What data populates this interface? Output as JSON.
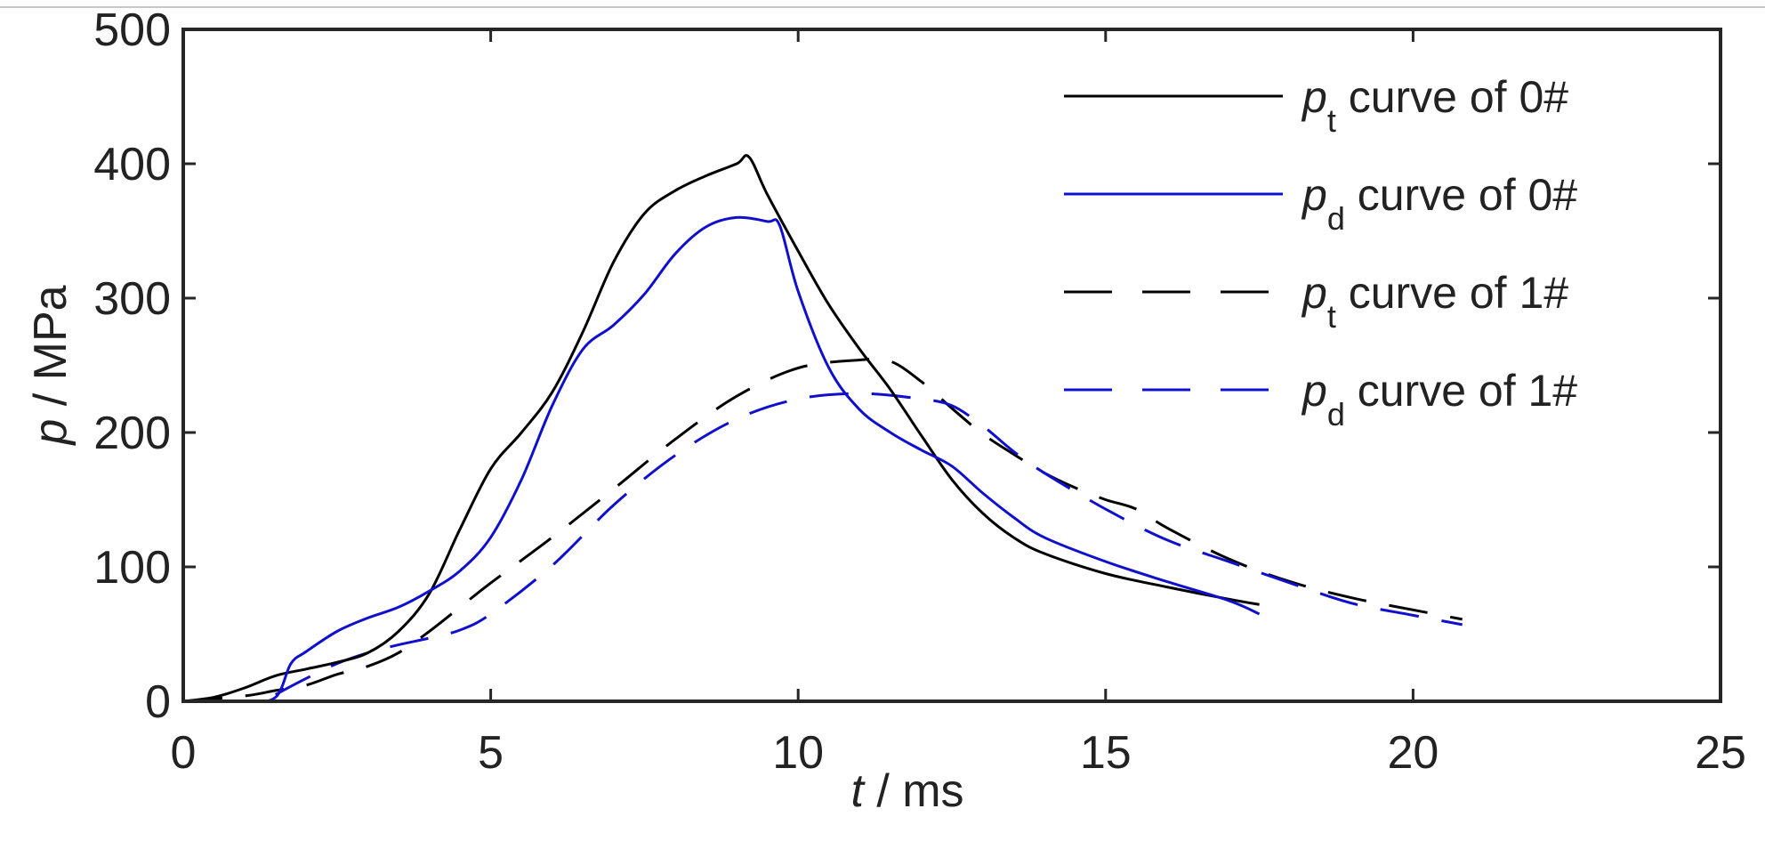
{
  "chart_data": {
    "type": "line",
    "title": "",
    "xlabel": {
      "var": "t",
      "unit": " / ms"
    },
    "ylabel": {
      "var": "p",
      "unit": " / MPa"
    },
    "xlim": [
      0,
      25
    ],
    "ylim": [
      0,
      500
    ],
    "xticks": [
      0,
      5,
      10,
      15,
      20,
      25
    ],
    "yticks": [
      0,
      100,
      200,
      300,
      400,
      500
    ],
    "grid": false,
    "legend_position": "top-right",
    "series": [
      {
        "name": "pt curve of  0#",
        "legend": {
          "var": "p",
          "sub": "t",
          "rest": " curve of  0#"
        },
        "color": "#000000",
        "dash": "solid",
        "x": [
          0,
          0.5,
          1.0,
          1.5,
          2.0,
          2.5,
          3.0,
          3.5,
          4.0,
          4.5,
          5.0,
          5.5,
          6.0,
          6.5,
          7.0,
          7.5,
          8.0,
          8.5,
          9.0,
          9.2,
          9.5,
          10.0,
          10.5,
          11.0,
          11.5,
          12.0,
          12.5,
          13.0,
          13.5,
          14.0,
          15.0,
          16.0,
          17.0,
          17.5
        ],
        "y": [
          0,
          3,
          10,
          19,
          24,
          29,
          36,
          52,
          80,
          128,
          173,
          200,
          230,
          275,
          327,
          363,
          380,
          391,
          400,
          405,
          377,
          335,
          295,
          262,
          232,
          198,
          165,
          140,
          122,
          110,
          95,
          85,
          76,
          72
        ]
      },
      {
        "name": "pd curve of 0#",
        "legend": {
          "var": "p",
          "sub": "d",
          "rest": " curve of 0#"
        },
        "color": "#1010cc",
        "dash": "solid",
        "x": [
          0,
          1.0,
          1.5,
          1.75,
          2.0,
          2.5,
          3.0,
          3.5,
          4.0,
          4.5,
          5.0,
          5.5,
          6.0,
          6.5,
          7.0,
          7.5,
          8.0,
          8.5,
          9.0,
          9.5,
          9.7,
          10.0,
          10.5,
          11.0,
          11.5,
          12.0,
          12.5,
          13.0,
          13.5,
          14.0,
          15.0,
          16.0,
          17.0,
          17.5
        ],
        "y": [
          0,
          0,
          3,
          28,
          37,
          52,
          62,
          70,
          82,
          97,
          122,
          165,
          220,
          262,
          280,
          303,
          333,
          353,
          360,
          357,
          354,
          305,
          248,
          217,
          200,
          187,
          175,
          155,
          137,
          122,
          104,
          89,
          75,
          65
        ]
      },
      {
        "name": "pt curve of  1#",
        "legend": {
          "var": "p",
          "sub": "t",
          "rest": " curve of  1#"
        },
        "color": "#000000",
        "dash": "long-dash",
        "x": [
          0,
          1.0,
          1.5,
          2.0,
          2.5,
          3.0,
          3.5,
          4.0,
          4.5,
          5.0,
          6.0,
          7.0,
          8.0,
          9.0,
          10.0,
          11.0,
          11.5,
          12.0,
          12.5,
          13.0,
          13.5,
          14.0,
          14.5,
          15.0,
          15.5,
          16.0,
          17.0,
          18.0,
          19.0,
          20.0,
          20.8
        ],
        "y": [
          0,
          4,
          8,
          12,
          20,
          26,
          36,
          52,
          70,
          88,
          122,
          158,
          195,
          227,
          248,
          254,
          253,
          238,
          218,
          199,
          184,
          170,
          159,
          150,
          143,
          129,
          106,
          89,
          77,
          68,
          61
        ]
      },
      {
        "name": "pd curve of 1#",
        "legend": {
          "var": "p",
          "sub": "d",
          "rest": " curve of 1#"
        },
        "color": "#1010cc",
        "dash": "long-dash",
        "x": [
          1.5,
          2.0,
          2.5,
          3.0,
          3.5,
          4.0,
          4.5,
          5.0,
          6.0,
          7.0,
          8.0,
          9.0,
          10.0,
          11.0,
          12.0,
          12.5,
          13.0,
          13.5,
          14.0,
          15.0,
          16.0,
          17.0,
          18.0,
          19.0,
          20.0,
          20.8
        ],
        "y": [
          5,
          17,
          28,
          36,
          42,
          47,
          53,
          65,
          101,
          146,
          183,
          210,
          225,
          229,
          225,
          220,
          205,
          186,
          170,
          143,
          120,
          104,
          88,
          73,
          64,
          57
        ]
      }
    ]
  }
}
